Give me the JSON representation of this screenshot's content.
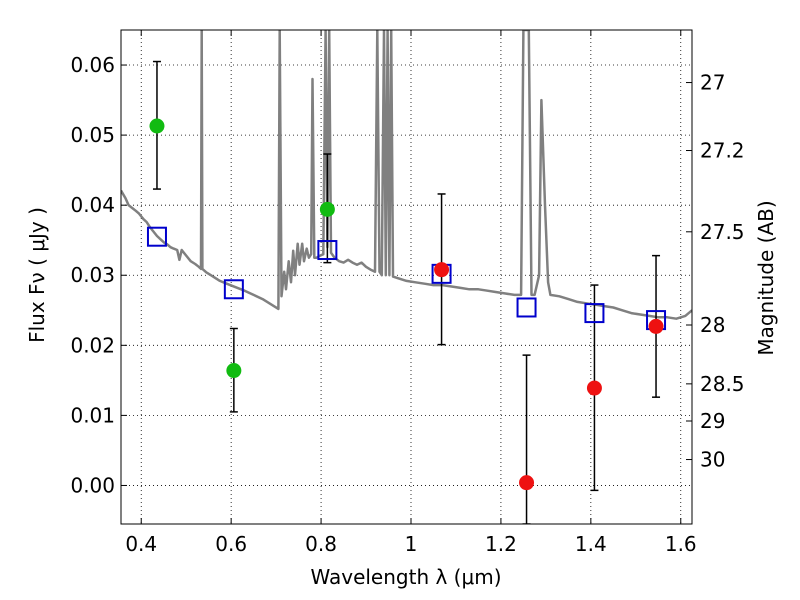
{
  "chart_data": {
    "type": "scatter",
    "xlabel": "Wavelength  λ (μm)",
    "ylabel": "Flux  Fν  ( μJy )",
    "y2label": "Magnitude (AB)",
    "xlim": [
      0.355,
      1.625
    ],
    "ylim": [
      -0.0055,
      0.065
    ],
    "grid": true,
    "x_ticks": [
      0.4,
      0.6,
      0.8,
      1.0,
      1.2,
      1.4,
      1.6
    ],
    "x_tick_labels": [
      "0.4",
      "0.6",
      "0.8",
      "1",
      "1.2",
      "1.4",
      "1.6"
    ],
    "y_ticks": [
      0.0,
      0.01,
      0.02,
      0.03,
      0.04,
      0.05,
      0.06
    ],
    "y_tick_labels": [
      "0.00",
      "0.01",
      "0.02",
      "0.03",
      "0.04",
      "0.05",
      "0.06"
    ],
    "right_ticks": [
      {
        "label": "27",
        "flux": 0.0575
      },
      {
        "label": "27.2",
        "flux": 0.0478
      },
      {
        "label": "27.5",
        "flux": 0.0362
      },
      {
        "label": "28",
        "flux": 0.0229
      },
      {
        "label": "28.5",
        "flux": 0.0145
      },
      {
        "label": "29",
        "flux": 0.0092
      },
      {
        "label": "30",
        "flux": 0.0037
      }
    ],
    "colors": {
      "green": "#11bb11",
      "red": "#ee1111",
      "blue": "#0000cc",
      "spectrum": "#808080",
      "errorbar": "#000000"
    },
    "series": [
      {
        "marker": "circle",
        "color": "green",
        "points": [
          {
            "x": 0.435,
            "y": 0.0513,
            "ylow": 0.0423,
            "yhigh": 0.0605
          },
          {
            "x": 0.606,
            "y": 0.0164,
            "ylow": 0.0105,
            "yhigh": 0.0224
          },
          {
            "x": 0.814,
            "y": 0.0394,
            "ylow": 0.0318,
            "yhigh": 0.0473
          }
        ]
      },
      {
        "marker": "circle",
        "color": "red",
        "points": [
          {
            "x": 1.068,
            "y": 0.0308,
            "ylow": 0.0201,
            "yhigh": 0.0416
          },
          {
            "x": 1.257,
            "y": 0.0004,
            "ylow": -0.0055,
            "yhigh": 0.0186
          },
          {
            "x": 1.408,
            "y": 0.0139,
            "ylow": -0.0007,
            "yhigh": 0.0286
          },
          {
            "x": 1.545,
            "y": 0.0227,
            "ylow": 0.0126,
            "yhigh": 0.0328
          }
        ]
      },
      {
        "marker": "open-square",
        "color": "blue",
        "points": [
          {
            "x": 0.435,
            "y": 0.0355
          },
          {
            "x": 0.606,
            "y": 0.028
          },
          {
            "x": 0.814,
            "y": 0.0336
          },
          {
            "x": 1.068,
            "y": 0.0302
          },
          {
            "x": 1.257,
            "y": 0.0254
          },
          {
            "x": 1.408,
            "y": 0.0246
          },
          {
            "x": 1.545,
            "y": 0.0236
          }
        ]
      },
      {
        "marker": "line",
        "color": "spectrum",
        "points": [
          [
            0.355,
            0.0421
          ],
          [
            0.365,
            0.041
          ],
          [
            0.372,
            0.04
          ],
          [
            0.38,
            0.0396
          ],
          [
            0.388,
            0.0392
          ],
          [
            0.395,
            0.0388
          ],
          [
            0.405,
            0.038
          ],
          [
            0.412,
            0.0376
          ],
          [
            0.418,
            0.037
          ],
          [
            0.425,
            0.0364
          ],
          [
            0.435,
            0.0356
          ],
          [
            0.445,
            0.035
          ],
          [
            0.452,
            0.0346
          ],
          [
            0.458,
            0.0344
          ],
          [
            0.465,
            0.034
          ],
          [
            0.472,
            0.0338
          ],
          [
            0.48,
            0.0336
          ],
          [
            0.485,
            0.0322
          ],
          [
            0.49,
            0.0336
          ],
          [
            0.5,
            0.0328
          ],
          [
            0.51,
            0.032
          ],
          [
            0.52,
            0.0316
          ],
          [
            0.528,
            0.0312
          ],
          [
            0.533,
            0.0309
          ],
          [
            0.5345,
            0.065
          ],
          [
            0.536,
            0.0309
          ],
          [
            0.545,
            0.0304
          ],
          [
            0.555,
            0.03
          ],
          [
            0.565,
            0.0296
          ],
          [
            0.575,
            0.0292
          ],
          [
            0.59,
            0.0288
          ],
          [
            0.61,
            0.0283
          ],
          [
            0.63,
            0.0278
          ],
          [
            0.65,
            0.0272
          ],
          [
            0.67,
            0.0266
          ],
          [
            0.69,
            0.0258
          ],
          [
            0.705,
            0.0252
          ],
          [
            0.708,
            0.065
          ],
          [
            0.712,
            0.027
          ],
          [
            0.718,
            0.0305
          ],
          [
            0.722,
            0.028
          ],
          [
            0.728,
            0.032
          ],
          [
            0.733,
            0.029
          ],
          [
            0.738,
            0.0335
          ],
          [
            0.742,
            0.03
          ],
          [
            0.748,
            0.0345
          ],
          [
            0.752,
            0.0315
          ],
          [
            0.758,
            0.0345
          ],
          [
            0.762,
            0.032
          ],
          [
            0.768,
            0.0338
          ],
          [
            0.773,
            0.0325
          ],
          [
            0.778,
            0.033
          ],
          [
            0.781,
            0.058
          ],
          [
            0.785,
            0.0325
          ],
          [
            0.79,
            0.0325
          ],
          [
            0.798,
            0.0328
          ],
          [
            0.805,
            0.033
          ],
          [
            0.81,
            0.065
          ],
          [
            0.814,
            0.034
          ],
          [
            0.818,
            0.065
          ],
          [
            0.822,
            0.0332
          ],
          [
            0.83,
            0.0325
          ],
          [
            0.84,
            0.032
          ],
          [
            0.85,
            0.0318
          ],
          [
            0.86,
            0.0322
          ],
          [
            0.87,
            0.0318
          ],
          [
            0.88,
            0.0315
          ],
          [
            0.89,
            0.0318
          ],
          [
            0.9,
            0.0312
          ],
          [
            0.91,
            0.0308
          ],
          [
            0.92,
            0.0305
          ],
          [
            0.925,
            0.065
          ],
          [
            0.93,
            0.0305
          ],
          [
            0.935,
            0.03
          ],
          [
            0.94,
            0.065
          ],
          [
            0.944,
            0.03
          ],
          [
            0.948,
            0.065
          ],
          [
            0.952,
            0.03
          ],
          [
            0.956,
            0.065
          ],
          [
            0.96,
            0.0298
          ],
          [
            0.97,
            0.0296
          ],
          [
            0.99,
            0.0292
          ],
          [
            1.01,
            0.029
          ],
          [
            1.03,
            0.0288
          ],
          [
            1.05,
            0.0286
          ],
          [
            1.07,
            0.0286
          ],
          [
            1.09,
            0.0284
          ],
          [
            1.11,
            0.0282
          ],
          [
            1.13,
            0.028
          ],
          [
            1.15,
            0.028
          ],
          [
            1.17,
            0.0278
          ],
          [
            1.19,
            0.0276
          ],
          [
            1.21,
            0.0274
          ],
          [
            1.23,
            0.0272
          ],
          [
            1.245,
            0.0272
          ],
          [
            1.25,
            0.065
          ],
          [
            1.255,
            0.065
          ],
          [
            1.262,
            0.065
          ],
          [
            1.268,
            0.0272
          ],
          [
            1.275,
            0.0272
          ],
          [
            1.285,
            0.03
          ],
          [
            1.29,
            0.055
          ],
          [
            1.298,
            0.04
          ],
          [
            1.305,
            0.029
          ],
          [
            1.31,
            0.0272
          ],
          [
            1.33,
            0.027
          ],
          [
            1.35,
            0.0266
          ],
          [
            1.37,
            0.0262
          ],
          [
            1.39,
            0.026
          ],
          [
            1.41,
            0.0258
          ],
          [
            1.43,
            0.0256
          ],
          [
            1.45,
            0.0254
          ],
          [
            1.47,
            0.025
          ],
          [
            1.49,
            0.0246
          ],
          [
            1.51,
            0.0244
          ],
          [
            1.53,
            0.0242
          ],
          [
            1.55,
            0.024
          ],
          [
            1.57,
            0.024
          ],
          [
            1.59,
            0.0238
          ],
          [
            1.61,
            0.0242
          ],
          [
            1.625,
            0.025
          ]
        ]
      }
    ]
  }
}
